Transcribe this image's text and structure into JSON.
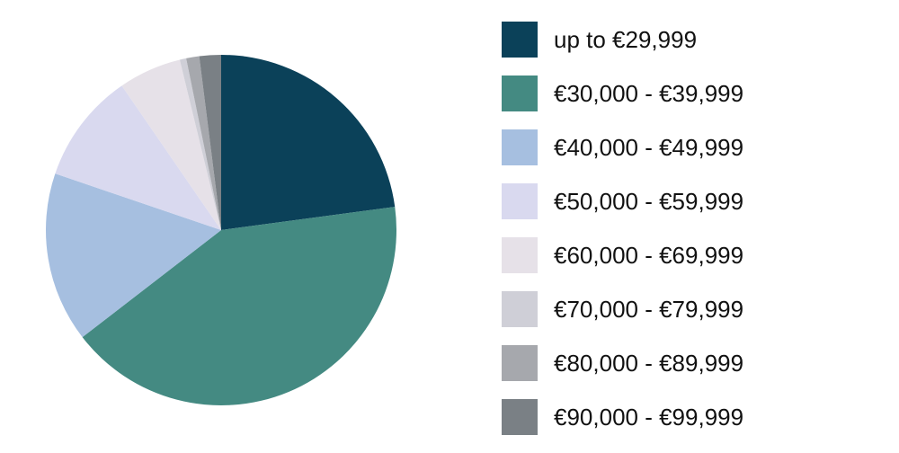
{
  "chart_data": {
    "type": "pie",
    "title": "",
    "categories": [
      "up to €29,999",
      "€30,000 - €39,999",
      "€40,000 - €49,999",
      "€50,000 - €59,999",
      "€60,000 - €69,999",
      "€70,000 - €79,999",
      "€80,000 - €89,999",
      "€90,000 - €99,999"
    ],
    "values": [
      22.9,
      41.7,
      15.7,
      10.2,
      5.8,
      0.6,
      1.2,
      2.0
    ],
    "colors": [
      "#0b4159",
      "#448a82",
      "#a6bfe0",
      "#d9d9ef",
      "#e6e1e8",
      "#cfcfd7",
      "#a6a8ad",
      "#7a8085"
    ],
    "legend_position": "right",
    "start_angle_deg": 0,
    "direction": "clockwise"
  },
  "legend": {
    "items": [
      {
        "label": "up to €29,999",
        "color": "#0b4159"
      },
      {
        "label": "€30,000 - €39,999",
        "color": "#448a82"
      },
      {
        "label": "€40,000 - €49,999",
        "color": "#a6bfe0"
      },
      {
        "label": "€50,000 - €59,999",
        "color": "#d9d9ef"
      },
      {
        "label": "€60,000 - €69,999",
        "color": "#e6e1e8"
      },
      {
        "label": "€70,000 - €79,999",
        "color": "#cfcfd7"
      },
      {
        "label": "€80,000 - €89,999",
        "color": "#a6a8ad"
      },
      {
        "label": "€90,000 - €99,999",
        "color": "#7a8085"
      }
    ]
  }
}
